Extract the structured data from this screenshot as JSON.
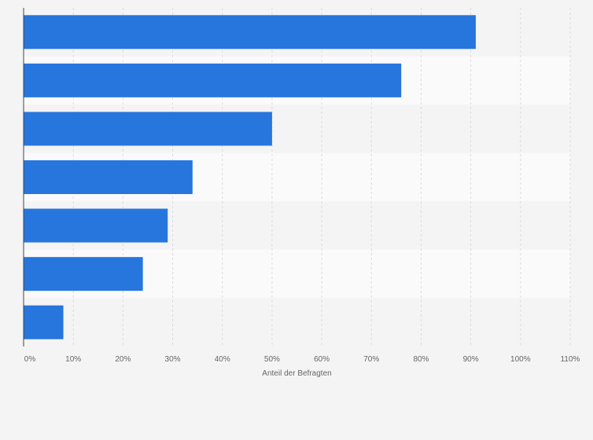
{
  "chart_data": {
    "type": "bar",
    "orientation": "horizontal",
    "title": "",
    "xlabel": "Anteil der Befragten",
    "ylabel": "",
    "categories": [
      "",
      "",
      "",
      "",
      "",
      "",
      ""
    ],
    "values": [
      91,
      76,
      50,
      34,
      29,
      24,
      8
    ],
    "xlim": [
      0,
      110
    ],
    "xticks": [
      0,
      10,
      20,
      30,
      40,
      50,
      60,
      70,
      80,
      90,
      100,
      110
    ],
    "tick_labels": [
      "0%",
      "10%",
      "20%",
      "30%",
      "40%",
      "50%",
      "60%",
      "70%",
      "80%",
      "90%",
      "100%",
      "110%"
    ],
    "grid": true,
    "legend": "none",
    "colors": {
      "bar": "#2776de",
      "background": "#f4f4f4",
      "band_light": "#fafafa",
      "grid": "#dcdcdc",
      "axis": "#444444",
      "text": "#666666"
    }
  }
}
